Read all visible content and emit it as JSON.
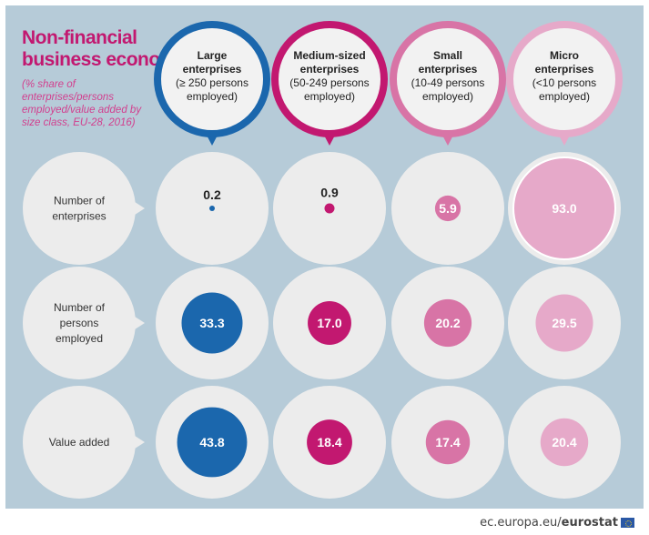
{
  "title": [
    "Non-financial",
    "business economy"
  ],
  "subtitle": [
    "(% share of",
    "enterprises/persons",
    "employed/value added by",
    "size class, EU-28, 2016)"
  ],
  "footer": {
    "domain": "ec.europa.eu/",
    "brand": "eurostat",
    "flag_icon": "eu-flag-icon"
  },
  "colors": {
    "background": "#b6cbd8",
    "large": "#1b67ad",
    "medium": "#c21870",
    "small": "#d874a6",
    "micro": "#e6a9c9",
    "bubble": "#ececec"
  },
  "chart_data": {
    "type": "bubble-table",
    "title": "Non-financial business economy",
    "subtitle": "(% share of enterprises/persons employed/value added by size class, EU-28, 2016)",
    "columns": [
      {
        "name": "Large enterprises",
        "lines": [
          "Large",
          "enterprises",
          "(≥ 250 persons",
          "employed)"
        ],
        "bold_lines": 2,
        "color": "#1b67ad"
      },
      {
        "name": "Medium-sized enterprises",
        "lines": [
          "Medium-sized",
          "enterprises",
          "(50-249 persons",
          "employed)"
        ],
        "bold_lines": 2,
        "color": "#c21870"
      },
      {
        "name": "Small enterprises",
        "lines": [
          "Small",
          "enterprises",
          "(10-49 persons",
          "employed)"
        ],
        "bold_lines": 2,
        "color": "#d874a6"
      },
      {
        "name": "Micro enterprises",
        "lines": [
          "Micro",
          "enterprises",
          "(<10 persons",
          "employed)"
        ],
        "bold_lines": 2,
        "color": "#e6a9c9"
      }
    ],
    "rows": [
      {
        "label_lines": [
          "Number of",
          "enterprises"
        ],
        "values": [
          0.2,
          0.9,
          5.9,
          93.0
        ],
        "labels": [
          "0.2",
          "0.9",
          "5.9",
          "93.0"
        ]
      },
      {
        "label_lines": [
          "Number of",
          "persons",
          "employed"
        ],
        "values": [
          33.3,
          17.0,
          20.2,
          29.5
        ],
        "labels": [
          "33.3",
          "17.0",
          "20.2",
          "29.5"
        ]
      },
      {
        "label_lines": [
          "Value added"
        ],
        "values": [
          43.8,
          18.4,
          17.4,
          20.4
        ],
        "labels": [
          "43.8",
          "18.4",
          "17.4",
          "20.4"
        ]
      }
    ],
    "unit": "%"
  }
}
